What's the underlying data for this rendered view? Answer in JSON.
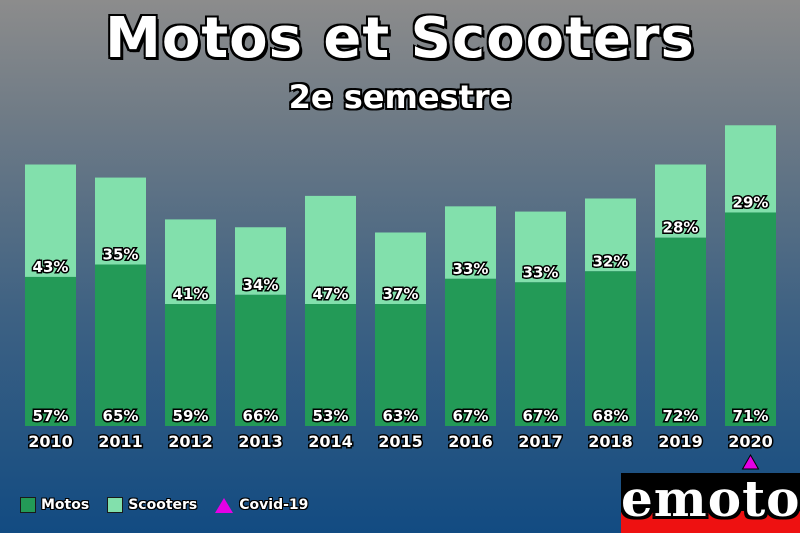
{
  "header": {
    "title": "Motos et Scooters",
    "subtitle": "2e semestre"
  },
  "colors": {
    "motos": "#239a57",
    "scooters": "#82e0ac",
    "covid": "#e600e6"
  },
  "chart_data": {
    "type": "bar",
    "stacked": true,
    "title": "Motos et Scooters",
    "subtitle": "2e semestre",
    "categories": [
      "2010",
      "2011",
      "2012",
      "2013",
      "2014",
      "2015",
      "2016",
      "2017",
      "2018",
      "2019",
      "2020"
    ],
    "totals": [
      100,
      95,
      79,
      76,
      88,
      74,
      84,
      82,
      87,
      100,
      115
    ],
    "series": [
      {
        "name": "Motos",
        "percent": [
          57,
          65,
          59,
          66,
          53,
          63,
          67,
          67,
          68,
          72,
          71
        ],
        "percent_labels": [
          "57%",
          "65%",
          "59%",
          "66%",
          "53%",
          "63%",
          "67%",
          "67%",
          "68%",
          "72%",
          "71%"
        ]
      },
      {
        "name": "Scooters",
        "percent": [
          43,
          35,
          41,
          34,
          47,
          37,
          33,
          33,
          32,
          28,
          29
        ],
        "percent_labels": [
          "43%",
          "35%",
          "41%",
          "34%",
          "47%",
          "37%",
          "33%",
          "33%",
          "32%",
          "28%",
          "29%"
        ]
      }
    ],
    "annotation": {
      "category": "2020",
      "label": "Covid-19",
      "marker": "triangle"
    },
    "ylim": [
      0,
      120
    ],
    "grid": false,
    "legend": "bottom-left"
  },
  "legend": {
    "motos": "Motos",
    "scooters": "Scooters",
    "covid": "Covid-19"
  },
  "logo": {
    "text": "emoto"
  }
}
